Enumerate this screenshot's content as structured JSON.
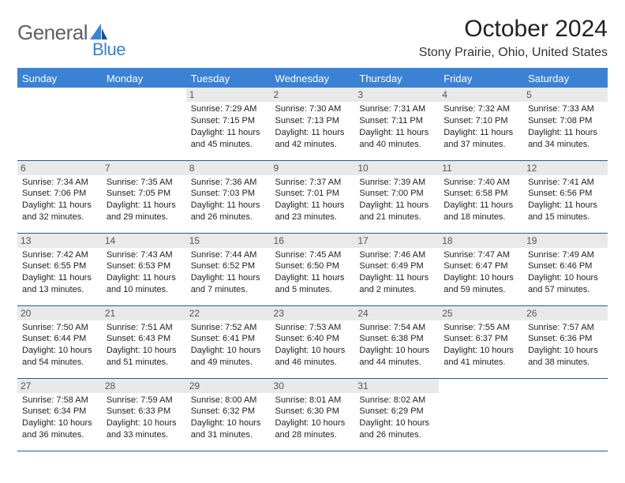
{
  "brand": {
    "word1": "General",
    "word2": "Blue",
    "color_general": "#606060",
    "color_blue": "#3b82d4"
  },
  "header": {
    "title": "October 2024",
    "location": "Stony Prairie, Ohio, United States"
  },
  "theme": {
    "header_bg": "#3b82d4",
    "row_border": "#2a5a96",
    "daynum_bg": "#e9e9e9"
  },
  "weekdays": [
    "Sunday",
    "Monday",
    "Tuesday",
    "Wednesday",
    "Thursday",
    "Friday",
    "Saturday"
  ],
  "weeks": [
    [
      null,
      null,
      {
        "d": "1",
        "sr": "Sunrise: 7:29 AM",
        "ss": "Sunset: 7:15 PM",
        "dl1": "Daylight: 11 hours",
        "dl2": "and 45 minutes."
      },
      {
        "d": "2",
        "sr": "Sunrise: 7:30 AM",
        "ss": "Sunset: 7:13 PM",
        "dl1": "Daylight: 11 hours",
        "dl2": "and 42 minutes."
      },
      {
        "d": "3",
        "sr": "Sunrise: 7:31 AM",
        "ss": "Sunset: 7:11 PM",
        "dl1": "Daylight: 11 hours",
        "dl2": "and 40 minutes."
      },
      {
        "d": "4",
        "sr": "Sunrise: 7:32 AM",
        "ss": "Sunset: 7:10 PM",
        "dl1": "Daylight: 11 hours",
        "dl2": "and 37 minutes."
      },
      {
        "d": "5",
        "sr": "Sunrise: 7:33 AM",
        "ss": "Sunset: 7:08 PM",
        "dl1": "Daylight: 11 hours",
        "dl2": "and 34 minutes."
      }
    ],
    [
      {
        "d": "6",
        "sr": "Sunrise: 7:34 AM",
        "ss": "Sunset: 7:06 PM",
        "dl1": "Daylight: 11 hours",
        "dl2": "and 32 minutes."
      },
      {
        "d": "7",
        "sr": "Sunrise: 7:35 AM",
        "ss": "Sunset: 7:05 PM",
        "dl1": "Daylight: 11 hours",
        "dl2": "and 29 minutes."
      },
      {
        "d": "8",
        "sr": "Sunrise: 7:36 AM",
        "ss": "Sunset: 7:03 PM",
        "dl1": "Daylight: 11 hours",
        "dl2": "and 26 minutes."
      },
      {
        "d": "9",
        "sr": "Sunrise: 7:37 AM",
        "ss": "Sunset: 7:01 PM",
        "dl1": "Daylight: 11 hours",
        "dl2": "and 23 minutes."
      },
      {
        "d": "10",
        "sr": "Sunrise: 7:39 AM",
        "ss": "Sunset: 7:00 PM",
        "dl1": "Daylight: 11 hours",
        "dl2": "and 21 minutes."
      },
      {
        "d": "11",
        "sr": "Sunrise: 7:40 AM",
        "ss": "Sunset: 6:58 PM",
        "dl1": "Daylight: 11 hours",
        "dl2": "and 18 minutes."
      },
      {
        "d": "12",
        "sr": "Sunrise: 7:41 AM",
        "ss": "Sunset: 6:56 PM",
        "dl1": "Daylight: 11 hours",
        "dl2": "and 15 minutes."
      }
    ],
    [
      {
        "d": "13",
        "sr": "Sunrise: 7:42 AM",
        "ss": "Sunset: 6:55 PM",
        "dl1": "Daylight: 11 hours",
        "dl2": "and 13 minutes."
      },
      {
        "d": "14",
        "sr": "Sunrise: 7:43 AM",
        "ss": "Sunset: 6:53 PM",
        "dl1": "Daylight: 11 hours",
        "dl2": "and 10 minutes."
      },
      {
        "d": "15",
        "sr": "Sunrise: 7:44 AM",
        "ss": "Sunset: 6:52 PM",
        "dl1": "Daylight: 11 hours",
        "dl2": "and 7 minutes."
      },
      {
        "d": "16",
        "sr": "Sunrise: 7:45 AM",
        "ss": "Sunset: 6:50 PM",
        "dl1": "Daylight: 11 hours",
        "dl2": "and 5 minutes."
      },
      {
        "d": "17",
        "sr": "Sunrise: 7:46 AM",
        "ss": "Sunset: 6:49 PM",
        "dl1": "Daylight: 11 hours",
        "dl2": "and 2 minutes."
      },
      {
        "d": "18",
        "sr": "Sunrise: 7:47 AM",
        "ss": "Sunset: 6:47 PM",
        "dl1": "Daylight: 10 hours",
        "dl2": "and 59 minutes."
      },
      {
        "d": "19",
        "sr": "Sunrise: 7:49 AM",
        "ss": "Sunset: 6:46 PM",
        "dl1": "Daylight: 10 hours",
        "dl2": "and 57 minutes."
      }
    ],
    [
      {
        "d": "20",
        "sr": "Sunrise: 7:50 AM",
        "ss": "Sunset: 6:44 PM",
        "dl1": "Daylight: 10 hours",
        "dl2": "and 54 minutes."
      },
      {
        "d": "21",
        "sr": "Sunrise: 7:51 AM",
        "ss": "Sunset: 6:43 PM",
        "dl1": "Daylight: 10 hours",
        "dl2": "and 51 minutes."
      },
      {
        "d": "22",
        "sr": "Sunrise: 7:52 AM",
        "ss": "Sunset: 6:41 PM",
        "dl1": "Daylight: 10 hours",
        "dl2": "and 49 minutes."
      },
      {
        "d": "23",
        "sr": "Sunrise: 7:53 AM",
        "ss": "Sunset: 6:40 PM",
        "dl1": "Daylight: 10 hours",
        "dl2": "and 46 minutes."
      },
      {
        "d": "24",
        "sr": "Sunrise: 7:54 AM",
        "ss": "Sunset: 6:38 PM",
        "dl1": "Daylight: 10 hours",
        "dl2": "and 44 minutes."
      },
      {
        "d": "25",
        "sr": "Sunrise: 7:55 AM",
        "ss": "Sunset: 6:37 PM",
        "dl1": "Daylight: 10 hours",
        "dl2": "and 41 minutes."
      },
      {
        "d": "26",
        "sr": "Sunrise: 7:57 AM",
        "ss": "Sunset: 6:36 PM",
        "dl1": "Daylight: 10 hours",
        "dl2": "and 38 minutes."
      }
    ],
    [
      {
        "d": "27",
        "sr": "Sunrise: 7:58 AM",
        "ss": "Sunset: 6:34 PM",
        "dl1": "Daylight: 10 hours",
        "dl2": "and 36 minutes."
      },
      {
        "d": "28",
        "sr": "Sunrise: 7:59 AM",
        "ss": "Sunset: 6:33 PM",
        "dl1": "Daylight: 10 hours",
        "dl2": "and 33 minutes."
      },
      {
        "d": "29",
        "sr": "Sunrise: 8:00 AM",
        "ss": "Sunset: 6:32 PM",
        "dl1": "Daylight: 10 hours",
        "dl2": "and 31 minutes."
      },
      {
        "d": "30",
        "sr": "Sunrise: 8:01 AM",
        "ss": "Sunset: 6:30 PM",
        "dl1": "Daylight: 10 hours",
        "dl2": "and 28 minutes."
      },
      {
        "d": "31",
        "sr": "Sunrise: 8:02 AM",
        "ss": "Sunset: 6:29 PM",
        "dl1": "Daylight: 10 hours",
        "dl2": "and 26 minutes."
      },
      null,
      null
    ]
  ]
}
